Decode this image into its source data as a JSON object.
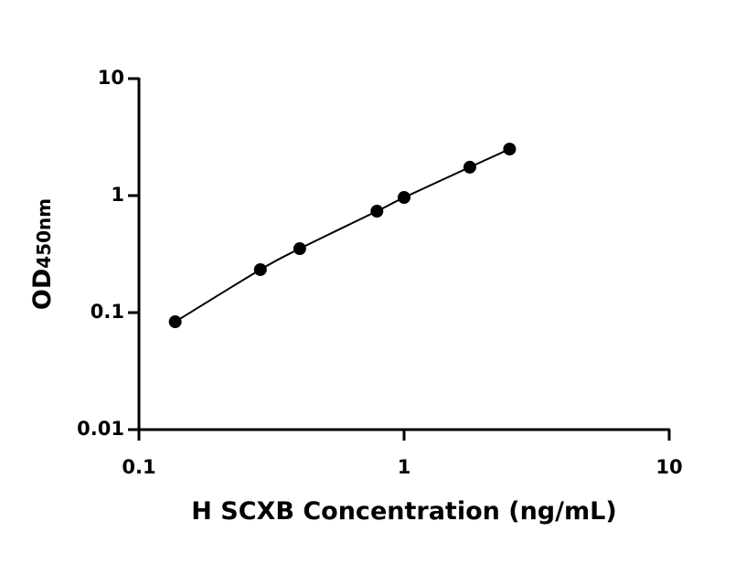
{
  "chart_data": {
    "type": "scatter",
    "x_label": "H SCXB Concentration (ng/mL)",
    "y_label": "OD",
    "y_label_subscript": "450nm",
    "x": [
      0.137,
      0.287,
      0.404,
      0.79,
      1,
      1.77,
      2.5
    ],
    "values": [
      0.0835,
      0.233,
      0.352,
      0.736,
      0.964,
      1.75,
      2.5
    ],
    "color": "#000000",
    "xlim": [
      0.1,
      10
    ],
    "xticks": [
      0.1,
      1,
      10
    ],
    "ylim": [
      0.01,
      10
    ],
    "yticks": [
      0.01,
      0.1,
      1,
      10
    ],
    "xscale": "log",
    "yscale": "log",
    "fit_line": true
  }
}
